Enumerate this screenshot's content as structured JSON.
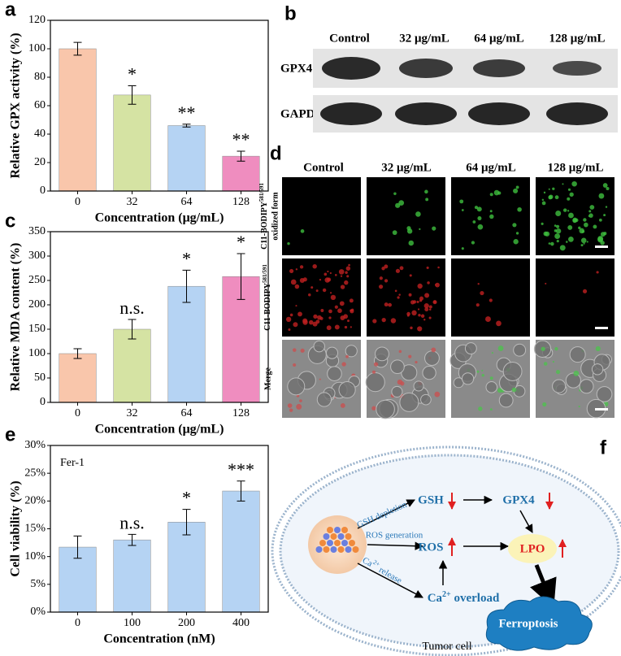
{
  "chart_data": [
    {
      "type": "bar",
      "panel_label": "a",
      "y_label": "Relative GPX activity (%)",
      "x_label": "Concentration (μg/mL)",
      "categories": [
        "0",
        "32",
        "64",
        "128"
      ],
      "values": [
        100,
        67.5,
        46,
        24.5
      ],
      "errors": [
        4.5,
        6.5,
        1,
        3.5
      ],
      "annotations": [
        null,
        "*",
        "**",
        "**"
      ],
      "colors": [
        "#f9c6ab",
        "#d5e3a3",
        "#b5d3f3",
        "#ef8dbf"
      ],
      "ylim": [
        0,
        120
      ],
      "yticks": [
        0,
        20,
        40,
        60,
        80,
        100,
        120
      ]
    },
    {
      "type": "bar",
      "panel_label": "c",
      "y_label": "Relative MDA content (%)",
      "x_label": "Concentration (μg/mL)",
      "categories": [
        "0",
        "32",
        "64",
        "128"
      ],
      "values": [
        100,
        150,
        238,
        258
      ],
      "errors": [
        10,
        20,
        33,
        47
      ],
      "annotations": [
        null,
        "n.s.",
        "*",
        "*"
      ],
      "colors": [
        "#f9c6ab",
        "#d5e3a3",
        "#b5d3f3",
        "#ef8dbf"
      ],
      "ylim": [
        0,
        350
      ],
      "yticks": [
        0,
        50,
        100,
        150,
        200,
        250,
        300,
        350
      ]
    },
    {
      "type": "bar",
      "panel_label": "e",
      "y_label": "Cell viability (%)",
      "x_label": "Concentration (nM)",
      "inset_label": "Fer-1",
      "categories": [
        "0",
        "100",
        "200",
        "400"
      ],
      "values": [
        11.7,
        13,
        16.2,
        21.8
      ],
      "errors": [
        2,
        1,
        2.3,
        1.8
      ],
      "annotations": [
        null,
        "n.s.",
        "*",
        "***"
      ],
      "colors": [
        "#b5d3f3",
        "#b5d3f3",
        "#b5d3f3",
        "#b5d3f3"
      ],
      "ylim": [
        0,
        30
      ],
      "yticks": [
        {
          "value": 0,
          "label": "0%"
        },
        {
          "value": 5,
          "label": "5%"
        },
        {
          "value": 10,
          "label": "10%"
        },
        {
          "value": 15,
          "label": "15%"
        },
        {
          "value": 20,
          "label": "20%"
        },
        {
          "value": 25,
          "label": "25%"
        },
        {
          "value": 30,
          "label": "30%"
        }
      ]
    }
  ],
  "panel_b": {
    "label": "b",
    "columns": [
      "Control",
      "32 μg/mL",
      "64 μg/mL",
      "128 μg/mL"
    ],
    "rows": [
      "GPX4",
      "GAPDH"
    ]
  },
  "panel_d": {
    "label": "d",
    "columns": [
      "Control",
      "32 μg/mL",
      "64 μg/mL",
      "128 μg/mL"
    ],
    "rows": [
      {
        "name": "C11-BODIPY",
        "sup": "581/591",
        "line2": "oxidized form"
      },
      {
        "name": "C11-BODIPY",
        "sup": "581/591"
      },
      {
        "name": "Merge"
      }
    ]
  },
  "panel_f": {
    "label": "f",
    "gsh_depletion": "GSH depletion",
    "ros_generation": "ROS generation",
    "ca_release": {
      "text": "Ca",
      "sup": "2+",
      "rest": " release"
    },
    "gsh": "GSH",
    "gpx4": "GPX4",
    "ros": "ROS",
    "lpo": "LPO",
    "ca_overload": {
      "text": "Ca",
      "sup": "2+",
      "rest": " overload"
    },
    "ferroptosis": "Ferroptosis",
    "tumor_cell": "Tumor cell"
  }
}
